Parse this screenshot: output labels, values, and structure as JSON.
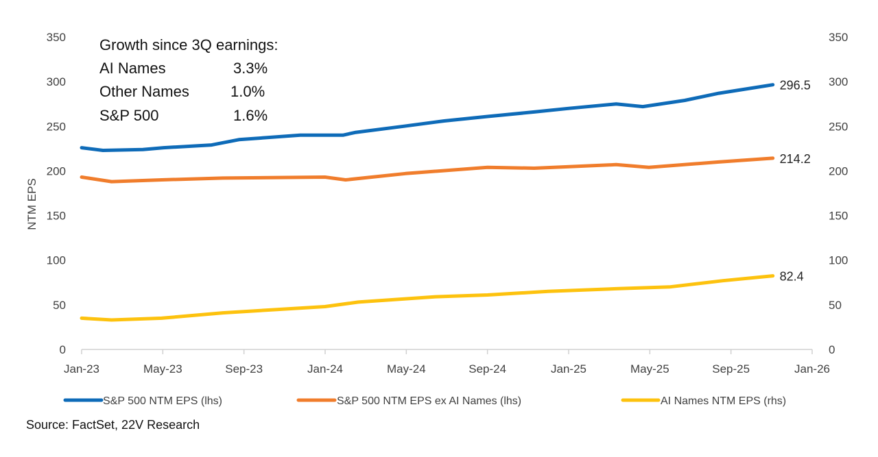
{
  "chart_data": {
    "type": "line",
    "title": "",
    "ylabel": "NTM EPS",
    "ylim": [
      0,
      350
    ],
    "y2lim": [
      0,
      350
    ],
    "yticks": [
      0,
      50,
      100,
      150,
      200,
      250,
      300,
      350
    ],
    "xticks": [
      "Jan-23",
      "May-23",
      "Sep-23",
      "Jan-24",
      "May-24",
      "Sep-24",
      "Jan-25",
      "May-25",
      "Sep-25",
      "Jan-26"
    ],
    "xlim": [
      "2023-01-01",
      "2026-01-01"
    ],
    "grid": false,
    "legend_position": "bottom",
    "annotation": {
      "heading": "Growth since 3Q earnings:",
      "rows": [
        {
          "label": "AI Names",
          "value": "3.3%"
        },
        {
          "label": "Other Names",
          "value": "1.0%"
        },
        {
          "label": "S&P 500",
          "value": "1.6%"
        }
      ]
    },
    "source": "Source: FactSet, 22V Research",
    "series": [
      {
        "name": "S&P 500 NTM EPS (lhs)",
        "color": "#0E6BB8",
        "end_label": "296.5",
        "axis": "left",
        "x": [
          "2023-01-01",
          "2023-02-02",
          "2023-04-03",
          "2023-05-04",
          "2023-07-15",
          "2023-08-25",
          "2023-11-25",
          "2024-01-28",
          "2024-02-15",
          "2024-04-28",
          "2024-06-28",
          "2024-09-01",
          "2024-11-10",
          "2025-01-01",
          "2025-03-13",
          "2025-04-22",
          "2025-06-24",
          "2025-08-14",
          "2025-11-03"
        ],
        "y": [
          226,
          223,
          224,
          226,
          229,
          235,
          240,
          240,
          243,
          250,
          256,
          261,
          266,
          270,
          275,
          272,
          279,
          287,
          296.5
        ]
      },
      {
        "name": "S&P 500 NTM EPS ex AI Names (lhs)",
        "color": "#F07D2C",
        "end_label": "214.2",
        "axis": "left",
        "x": [
          "2023-01-01",
          "2023-02-15",
          "2023-05-01",
          "2023-08-01",
          "2024-01-01",
          "2024-02-01",
          "2024-05-01",
          "2024-09-01",
          "2024-11-10",
          "2025-03-13",
          "2025-05-01",
          "2025-08-14",
          "2025-11-03"
        ],
        "y": [
          193,
          188,
          190,
          192,
          193,
          190,
          197,
          204,
          203,
          207,
          204,
          210,
          214.2
        ]
      },
      {
        "name": "AI Names NTM EPS (rhs)",
        "color": "#FDC20E",
        "end_label": "82.4",
        "axis": "right",
        "x": [
          "2023-01-01",
          "2023-02-15",
          "2023-05-01",
          "2023-08-01",
          "2024-01-01",
          "2024-02-20",
          "2024-06-15",
          "2024-09-01",
          "2024-12-01",
          "2025-03-13",
          "2025-06-01",
          "2025-08-20",
          "2025-11-03"
        ],
        "y": [
          35,
          33,
          35,
          41,
          48,
          53,
          59,
          61,
          65,
          68,
          70,
          77,
          82.4
        ]
      }
    ]
  }
}
